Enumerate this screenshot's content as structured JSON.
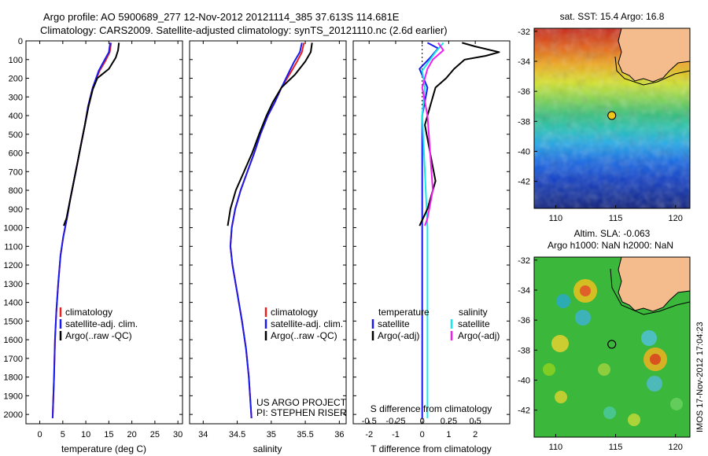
{
  "header": {
    "line1": "Argo profile: AO 5900689_277 12-Nov-2012 20121114_385 37.613S 114.681E",
    "line2": "Climatology: CARS2009. Satellite-adjusted climatology: synTS_20121110.nc (2.6d earlier)"
  },
  "colors": {
    "climatology": "#e8211f",
    "satellite": "#1a1aee",
    "argo": "#000000",
    "satellite_salinity": "#17e8f0",
    "argo_salinity_adj": "#ef1fef"
  },
  "chart_data": [
    {
      "id": "temperature",
      "type": "line",
      "xlabel": "temperature (deg C)",
      "ylabel": "",
      "xlim": [
        -3,
        31
      ],
      "ylim": [
        2050,
        0
      ],
      "xticks": [
        0,
        5,
        10,
        15,
        20,
        25,
        30
      ],
      "yticks": [
        0,
        100,
        200,
        300,
        400,
        500,
        600,
        700,
        800,
        900,
        1000,
        1100,
        1200,
        1300,
        1400,
        1500,
        1600,
        1700,
        1800,
        1900,
        2000
      ],
      "legend": [
        "climatology",
        "satellite-adj. clim.",
        "Argo(..raw -QC)"
      ],
      "series": [
        {
          "name": "climatology",
          "color": "#e8211f",
          "points": [
            [
              15.5,
              10
            ],
            [
              15.2,
              60
            ],
            [
              14.2,
              110
            ],
            [
              13.0,
              160
            ],
            [
              11.5,
              250
            ],
            [
              10.5,
              350
            ],
            [
              9.8,
              450
            ],
            [
              9.0,
              550
            ],
            [
              8.2,
              650
            ],
            [
              7.4,
              750
            ],
            [
              6.6,
              850
            ],
            [
              5.9,
              950
            ],
            [
              5.1,
              1050
            ],
            [
              4.5,
              1150
            ],
            [
              4.0,
              1300
            ],
            [
              3.6,
              1450
            ],
            [
              3.3,
              1600
            ],
            [
              3.1,
              1800
            ],
            [
              2.8,
              2020
            ]
          ]
        },
        {
          "name": "satellite-adj. clim.",
          "color": "#1a1aee",
          "points": [
            [
              15.3,
              10
            ],
            [
              15.0,
              60
            ],
            [
              13.9,
              110
            ],
            [
              12.8,
              160
            ],
            [
              11.5,
              250
            ],
            [
              10.5,
              350
            ],
            [
              9.8,
              450
            ],
            [
              9.0,
              550
            ],
            [
              8.2,
              650
            ],
            [
              7.4,
              750
            ],
            [
              6.6,
              850
            ],
            [
              5.9,
              950
            ],
            [
              5.1,
              1050
            ],
            [
              4.5,
              1150
            ],
            [
              4.0,
              1300
            ],
            [
              3.6,
              1450
            ],
            [
              3.3,
              1600
            ],
            [
              3.1,
              1800
            ],
            [
              2.8,
              2020
            ]
          ]
        },
        {
          "name": "Argo(..raw -QC)",
          "color": "#000000",
          "points": [
            [
              17.2,
              10
            ],
            [
              17.0,
              50
            ],
            [
              16.5,
              90
            ],
            [
              15.0,
              150
            ],
            [
              12.5,
              200
            ],
            [
              11.5,
              260
            ],
            [
              10.6,
              350
            ],
            [
              9.8,
              450
            ],
            [
              9.0,
              550
            ],
            [
              8.2,
              650
            ],
            [
              7.4,
              750
            ],
            [
              6.6,
              850
            ],
            [
              5.8,
              950
            ],
            [
              5.2,
              990
            ]
          ]
        }
      ]
    },
    {
      "id": "salinity",
      "type": "line",
      "xlabel": "salinity",
      "ylabel": "",
      "xlim": [
        33.8,
        36.1
      ],
      "ylim": [
        2050,
        0
      ],
      "xticks": [
        34,
        34.5,
        35,
        35.5,
        36
      ],
      "legend": [
        "climatology",
        "satellite-adj. clim.",
        "Argo(..raw -QC)"
      ],
      "series": [
        {
          "name": "climatology",
          "color": "#e8211f",
          "points": [
            [
              35.48,
              10
            ],
            [
              35.45,
              60
            ],
            [
              35.38,
              110
            ],
            [
              35.3,
              160
            ],
            [
              35.15,
              250
            ],
            [
              35.05,
              330
            ],
            [
              34.95,
              400
            ],
            [
              34.84,
              500
            ],
            [
              34.75,
              600
            ],
            [
              34.65,
              700
            ],
            [
              34.55,
              800
            ],
            [
              34.47,
              900
            ],
            [
              34.42,
              1000
            ],
            [
              34.4,
              1100
            ],
            [
              34.43,
              1200
            ],
            [
              34.5,
              1350
            ],
            [
              34.57,
              1500
            ],
            [
              34.63,
              1650
            ],
            [
              34.67,
              1800
            ],
            [
              34.71,
              2020
            ]
          ]
        },
        {
          "name": "satellite-adj. clim.",
          "color": "#1a1aee",
          "points": [
            [
              35.45,
              10
            ],
            [
              35.42,
              60
            ],
            [
              35.34,
              110
            ],
            [
              35.27,
              160
            ],
            [
              35.15,
              250
            ],
            [
              35.05,
              330
            ],
            [
              34.95,
              400
            ],
            [
              34.84,
              500
            ],
            [
              34.75,
              600
            ],
            [
              34.65,
              700
            ],
            [
              34.55,
              800
            ],
            [
              34.47,
              900
            ],
            [
              34.42,
              1000
            ],
            [
              34.4,
              1100
            ],
            [
              34.43,
              1200
            ],
            [
              34.5,
              1350
            ],
            [
              34.57,
              1500
            ],
            [
              34.63,
              1650
            ],
            [
              34.67,
              1800
            ],
            [
              34.71,
              2020
            ]
          ]
        },
        {
          "name": "Argo(..raw -QC)",
          "color": "#000000",
          "points": [
            [
              35.6,
              10
            ],
            [
              35.58,
              60
            ],
            [
              35.5,
              110
            ],
            [
              35.35,
              180
            ],
            [
              35.15,
              250
            ],
            [
              35.02,
              330
            ],
            [
              34.93,
              400
            ],
            [
              34.82,
              500
            ],
            [
              34.72,
              600
            ],
            [
              34.6,
              700
            ],
            [
              34.48,
              800
            ],
            [
              34.4,
              900
            ],
            [
              34.36,
              990
            ]
          ]
        }
      ]
    },
    {
      "id": "difference",
      "type": "line",
      "xlabel": "T difference from climatology",
      "xlabel_top": "S difference from climatology",
      "xlim": [
        -2.6,
        3.3
      ],
      "ylim": [
        2050,
        0
      ],
      "xticks": [
        -2,
        -1,
        0,
        1,
        2
      ],
      "xticks_top": [
        -0.5,
        -0.25,
        0,
        0.25,
        0.5
      ],
      "legend_temperature": {
        "title": "temperature",
        "items": [
          "satellite",
          "Argo(-adj)"
        ]
      },
      "legend_salinity": {
        "title": "salinity",
        "items": [
          "satellite",
          "Argo(-adj)"
        ]
      },
      "series": [
        {
          "name": "temperature satellite",
          "color": "#1a1aee",
          "points": [
            [
              0.2,
              10
            ],
            [
              0.6,
              40
            ],
            [
              0.3,
              90
            ],
            [
              -0.1,
              150
            ],
            [
              0.2,
              250
            ],
            [
              0,
              400
            ],
            [
              0,
              700
            ],
            [
              0,
              1000
            ],
            [
              0,
              1500
            ],
            [
              0,
              2020
            ]
          ]
        },
        {
          "name": "salinity satellite",
          "color": "#17e8f0",
          "points": [
            [
              0.8,
              10
            ],
            [
              0.5,
              60
            ],
            [
              0.3,
              100
            ],
            [
              0,
              160
            ],
            [
              0.1,
              250
            ],
            [
              0,
              400
            ],
            [
              0.1,
              700
            ],
            [
              0.2,
              1000
            ],
            [
              0.2,
              1500
            ],
            [
              0.2,
              2020
            ]
          ]
        },
        {
          "name": "temperature Argo(-adj)",
          "color": "#000000",
          "points": [
            [
              1.5,
              10
            ],
            [
              2.0,
              30
            ],
            [
              2.9,
              60
            ],
            [
              2.4,
              80
            ],
            [
              1.6,
              100
            ],
            [
              1.2,
              150
            ],
            [
              0.9,
              200
            ],
            [
              0.5,
              250
            ],
            [
              0.3,
              350
            ],
            [
              0.1,
              450
            ],
            [
              0.3,
              600
            ],
            [
              0.5,
              750
            ],
            [
              0.2,
              900
            ],
            [
              -0.1,
              990
            ]
          ]
        },
        {
          "name": "salinity Argo(-adj)",
          "color": "#ef1fef",
          "points": [
            [
              0.6,
              10
            ],
            [
              0.8,
              50
            ],
            [
              0.4,
              100
            ],
            [
              0.2,
              150
            ],
            [
              0,
              250
            ],
            [
              0.2,
              400
            ],
            [
              0.3,
              600
            ],
            [
              0.4,
              800
            ],
            [
              0.2,
              950
            ],
            [
              0.1,
              990
            ]
          ]
        }
      ]
    },
    {
      "id": "sst_map",
      "type": "heatmap",
      "title": "sat. SST: 15.4  Argo: 16.8",
      "xlim": [
        108.2,
        121.2
      ],
      "ylim": [
        -43.8,
        -31.8
      ],
      "xticks": [
        110,
        115,
        120
      ],
      "yticks": [
        -32,
        -34,
        -36,
        -38,
        -40,
        -42
      ],
      "marker": {
        "lon": 114.681,
        "lat": -37.613
      }
    },
    {
      "id": "sla_map",
      "type": "heatmap",
      "title": "Altim. SLA: -0.063",
      "subtitle": "Argo h1000: NaN h2000: NaN",
      "xlim": [
        108.2,
        121.2
      ],
      "ylim": [
        -43.8,
        -31.8
      ],
      "xticks": [
        110,
        115,
        120
      ],
      "yticks": [
        -32,
        -34,
        -36,
        -38,
        -40,
        -42
      ],
      "marker": {
        "lon": 114.681,
        "lat": -37.613
      }
    }
  ],
  "annotations": {
    "project": "US ARGO PROJECT",
    "pi": "PI: STEPHEN RISER",
    "watermark": "IMOS 17-Nov-2012 17:04:23"
  }
}
